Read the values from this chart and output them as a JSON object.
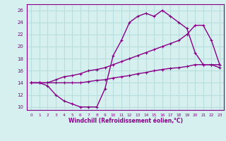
{
  "xlabel": "Windchill (Refroidissement éolien,°C)",
  "bg_color": "#d6efef",
  "grid_color": "#b8dede",
  "line_color": "#880088",
  "xlim": [
    -0.5,
    23.5
  ],
  "ylim": [
    9.5,
    27
  ],
  "xticks": [
    0,
    1,
    2,
    3,
    4,
    5,
    6,
    7,
    8,
    9,
    10,
    11,
    12,
    13,
    14,
    15,
    16,
    17,
    18,
    19,
    20,
    21,
    22,
    23
  ],
  "yticks": [
    10,
    12,
    14,
    16,
    18,
    20,
    22,
    24,
    26
  ],
  "line1_x": [
    0,
    1,
    2,
    3,
    4,
    5,
    6,
    7,
    8,
    9,
    10,
    11,
    12,
    13,
    14,
    15,
    16,
    17,
    18,
    19,
    20,
    21,
    22,
    23
  ],
  "line1_y": [
    14,
    14,
    13.5,
    12,
    11,
    10.5,
    10,
    10,
    10,
    13,
    18.5,
    21,
    24,
    25,
    25.5,
    25,
    26,
    25,
    24,
    23,
    19,
    17,
    17,
    16.5
  ],
  "line2_x": [
    0,
    1,
    2,
    3,
    4,
    5,
    6,
    7,
    8,
    9,
    10,
    11,
    12,
    13,
    14,
    15,
    16,
    17,
    18,
    19,
    20,
    21,
    22,
    23
  ],
  "line2_y": [
    14,
    14,
    14,
    14.5,
    15,
    15.2,
    15.5,
    16,
    16.2,
    16.5,
    17,
    17.5,
    18,
    18.5,
    19,
    19.5,
    20,
    20.5,
    21,
    22,
    23.5,
    23.5,
    21,
    17
  ],
  "line3_x": [
    0,
    1,
    2,
    3,
    4,
    5,
    6,
    7,
    8,
    9,
    10,
    11,
    12,
    13,
    14,
    15,
    16,
    17,
    18,
    19,
    20,
    21,
    22,
    23
  ],
  "line3_y": [
    14,
    14,
    14,
    14,
    14,
    14,
    14,
    14.2,
    14.4,
    14.5,
    14.8,
    15,
    15.2,
    15.5,
    15.7,
    16,
    16.2,
    16.4,
    16.5,
    16.7,
    17,
    17,
    17,
    17
  ]
}
